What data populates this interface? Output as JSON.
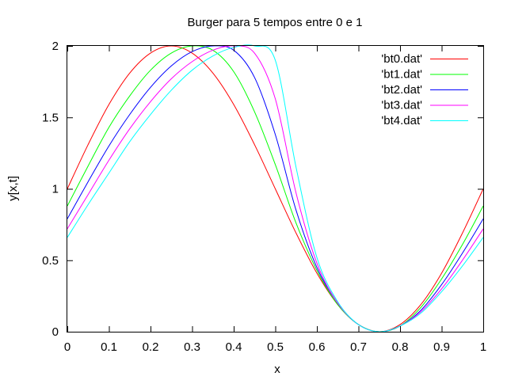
{
  "chart_data": {
    "type": "line",
    "title": "Burger para 5 tempos entre 0 e 1",
    "xlabel": "x",
    "ylabel": "y[x,t]",
    "xlim": [
      0,
      1
    ],
    "ylim": [
      0,
      2
    ],
    "xticks": [
      0,
      0.1,
      0.2,
      0.3,
      0.4,
      0.5,
      0.6,
      0.7,
      0.8,
      0.9,
      1
    ],
    "xtick_labels": [
      "0",
      "0.1",
      "0.2",
      "0.3",
      "0.4",
      "0.5",
      "0.6",
      "0.7",
      "0.8",
      "0.9",
      "1"
    ],
    "yticks": [
      0,
      0.5,
      1,
      1.5,
      2
    ],
    "ytick_labels": [
      "0",
      "0.5",
      "1",
      "1.5",
      "2"
    ],
    "grid": false,
    "legend_position": "top-right",
    "x": [
      0,
      0.05,
      0.1,
      0.15,
      0.2,
      0.25,
      0.3,
      0.35,
      0.4,
      0.45,
      0.5,
      0.55,
      0.6,
      0.65,
      0.7,
      0.75,
      0.8,
      0.85,
      0.9,
      0.95,
      1
    ],
    "series": [
      {
        "name": "'bt0.dat'",
        "color": "#ff0000",
        "values": [
          1.0,
          1.31,
          1.59,
          1.81,
          1.95,
          2.0,
          1.95,
          1.81,
          1.59,
          1.31,
          1.0,
          0.69,
          0.41,
          0.19,
          0.05,
          0.0,
          0.05,
          0.19,
          0.41,
          0.69,
          1.0
        ]
      },
      {
        "name": "'bt1.dat'",
        "color": "#00ff00",
        "values": [
          0.88,
          1.16,
          1.43,
          1.65,
          1.83,
          1.95,
          2.0,
          1.97,
          1.82,
          1.54,
          1.17,
          0.76,
          0.43,
          0.19,
          0.05,
          0.0,
          0.04,
          0.17,
          0.37,
          0.61,
          0.88
        ]
      },
      {
        "name": "'bt2.dat'",
        "color": "#0000ff",
        "values": [
          0.79,
          1.05,
          1.3,
          1.52,
          1.71,
          1.86,
          1.96,
          2.0,
          1.97,
          1.78,
          1.38,
          0.85,
          0.45,
          0.2,
          0.05,
          0.0,
          0.04,
          0.15,
          0.33,
          0.55,
          0.79
        ]
      },
      {
        "name": "'bt3.dat'",
        "color": "#ff00ff",
        "values": [
          0.72,
          0.96,
          1.2,
          1.42,
          1.61,
          1.77,
          1.89,
          1.97,
          2.0,
          1.95,
          1.63,
          0.97,
          0.48,
          0.2,
          0.05,
          0.0,
          0.04,
          0.14,
          0.3,
          0.5,
          0.72
        ]
      },
      {
        "name": "'bt4.dat'",
        "color": "#00ffff",
        "values": [
          0.66,
          0.89,
          1.11,
          1.33,
          1.52,
          1.69,
          1.83,
          1.93,
          1.99,
          2.0,
          1.9,
          1.15,
          0.52,
          0.21,
          0.05,
          0.0,
          0.04,
          0.13,
          0.28,
          0.46,
          0.66
        ]
      }
    ]
  }
}
